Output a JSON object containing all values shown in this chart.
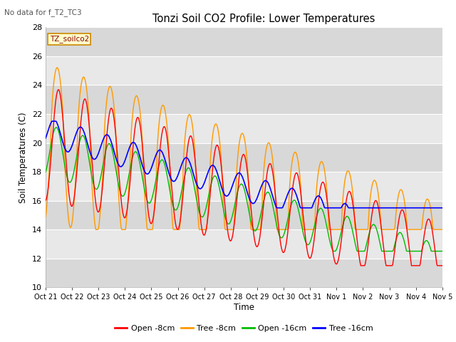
{
  "title": "Tonzi Soil CO2 Profile: Lower Temperatures",
  "subtitle": "No data for f_T2_TC3",
  "legend_label": "TZ_soilco2",
  "ylabel": "Soil Temperatures (C)",
  "xlabel": "Time",
  "ylim": [
    10,
    28
  ],
  "yticks": [
    10,
    12,
    14,
    16,
    18,
    20,
    22,
    24,
    26,
    28
  ],
  "x_labels": [
    "Oct 21",
    "Oct 22",
    "Oct 23",
    "Oct 24",
    "Oct 25",
    "Oct 26",
    "Oct 27",
    "Oct 28",
    "Oct 29",
    "Oct 30",
    "Oct 31",
    "Nov 1",
    "Nov 2",
    "Nov 3",
    "Nov 4",
    "Nov 5"
  ],
  "colors": {
    "open_8cm": "#ff0000",
    "tree_8cm": "#ff9900",
    "open_16cm": "#00bb00",
    "tree_16cm": "#0000ff"
  },
  "legend_entries": [
    "Open -8cm",
    "Tree -8cm",
    "Open -16cm",
    "Tree -16cm"
  ],
  "fig_bg": "#ffffff",
  "plot_bg": "#e8e8e8",
  "band_colors": [
    "#d8d8d8",
    "#e8e8e8"
  ]
}
